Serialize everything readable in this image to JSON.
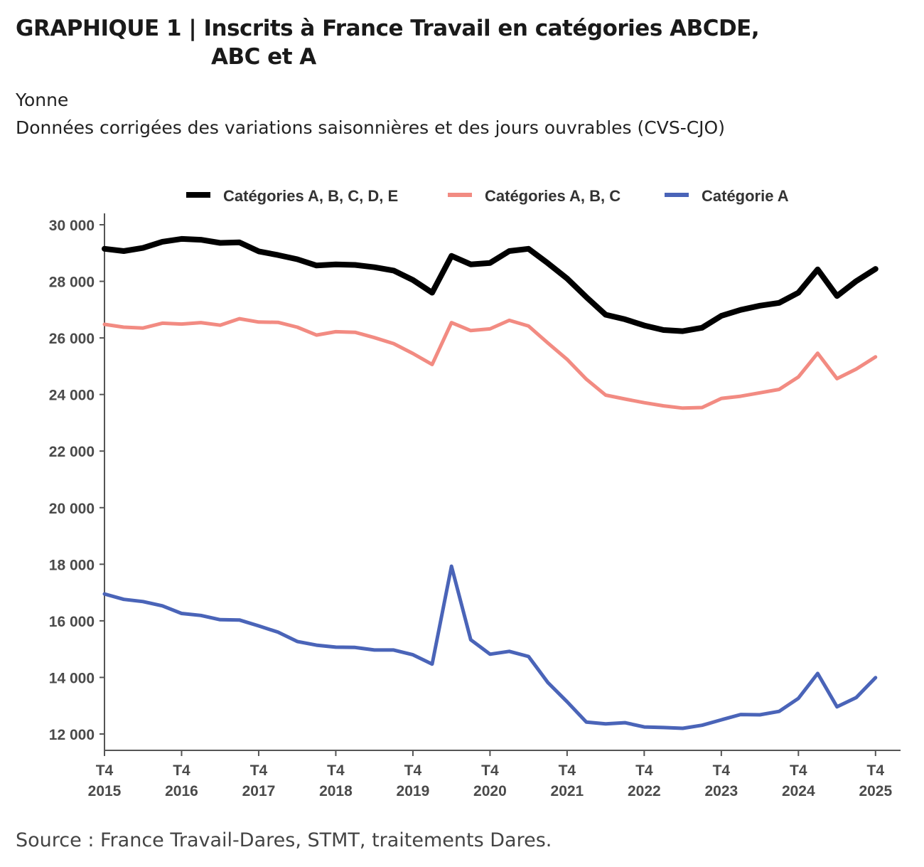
{
  "header": {
    "title_line1": "GRAPHIQUE 1 | Inscrits à France Travail en catégories ABCDE,",
    "title_line2": "ABC et A",
    "subtitle1": "Yonne",
    "subtitle2": "Données corrigées des variations saisonnières et des jours ouvrables (CVS-CJO)"
  },
  "footer": {
    "source": "Source : France Travail-Dares, STMT, traitements Dares."
  },
  "chart_data": {
    "type": "line",
    "title": "GRAPHIQUE 1 | Inscrits à France Travail en catégories ABCDE, ABC et A",
    "subtitle": "Yonne — Données corrigées des variations saisonnières et des jours ouvrables (CVS-CJO)",
    "xlabel": "",
    "ylabel": "",
    "x_unit": "quarter index (0 = T4 2015, 40 = T4 2025)",
    "x_ticks": [
      {
        "x": 0,
        "line1": "T4",
        "line2": "2015"
      },
      {
        "x": 4,
        "line1": "T4",
        "line2": "2016"
      },
      {
        "x": 8,
        "line1": "T4",
        "line2": "2017"
      },
      {
        "x": 12,
        "line1": "T4",
        "line2": "2018"
      },
      {
        "x": 16,
        "line1": "T4",
        "line2": "2019"
      },
      {
        "x": 20,
        "line1": "T4",
        "line2": "2020"
      },
      {
        "x": 24,
        "line1": "T4",
        "line2": "2021"
      },
      {
        "x": 28,
        "line1": "T4",
        "line2": "2022"
      },
      {
        "x": 32,
        "line1": "T4",
        "line2": "2023"
      },
      {
        "x": 36,
        "line1": "T4",
        "line2": "2024"
      },
      {
        "x": 40,
        "line1": "T4",
        "line2": "2025"
      }
    ],
    "y_ticks": [
      {
        "value": 12000,
        "label": "12 000"
      },
      {
        "value": 14000,
        "label": "14 000"
      },
      {
        "value": 16000,
        "label": "16 000"
      },
      {
        "value": 18000,
        "label": "18 000"
      },
      {
        "value": 20000,
        "label": "20 000"
      },
      {
        "value": 22000,
        "label": "22 000"
      },
      {
        "value": 24000,
        "label": "24 000"
      },
      {
        "value": 26000,
        "label": "26 000"
      },
      {
        "value": 28000,
        "label": "28 000"
      },
      {
        "value": 30000,
        "label": "30 000"
      }
    ],
    "xlim": [
      0,
      41.3
    ],
    "ylim": [
      11400,
      30400
    ],
    "grid": false,
    "legend_position": "top",
    "series": [
      {
        "name": "Catégories A, B, C, D, E",
        "color": "#000000",
        "values": [
          29150,
          29070,
          29180,
          29400,
          29500,
          29470,
          29360,
          29380,
          29060,
          28930,
          28780,
          28560,
          28600,
          28580,
          28500,
          28380,
          28050,
          27600,
          28900,
          28600,
          28650,
          29070,
          29150,
          28640,
          28100,
          27440,
          26820,
          26660,
          26440,
          26280,
          26240,
          26360,
          26780,
          26990,
          27140,
          27240,
          27600,
          28420,
          27480,
          28010,
          28440
        ]
      },
      {
        "name": "Catégories A, B, C",
        "color": "#f28b82",
        "values": [
          26480,
          26380,
          26350,
          26520,
          26490,
          26540,
          26450,
          26680,
          26560,
          26550,
          26380,
          26100,
          26220,
          26200,
          26010,
          25800,
          25450,
          25060,
          26540,
          26260,
          26320,
          26620,
          26420,
          25820,
          25240,
          24540,
          23980,
          23840,
          23710,
          23600,
          23520,
          23540,
          23860,
          23940,
          24060,
          24180,
          24620,
          25460,
          24560,
          24900,
          25330
        ]
      },
      {
        "name": "Catégorie A",
        "color": "#4a64b8",
        "values": [
          16950,
          16760,
          16680,
          16530,
          16260,
          16190,
          16040,
          16030,
          15820,
          15600,
          15270,
          15140,
          15070,
          15060,
          14970,
          14970,
          14800,
          14470,
          17930,
          15330,
          14820,
          14920,
          14740,
          13820,
          13140,
          12420,
          12360,
          12400,
          12250,
          12230,
          12200,
          12310,
          12500,
          12690,
          12680,
          12800,
          13260,
          14140,
          12960,
          13290,
          13990
        ]
      }
    ]
  }
}
